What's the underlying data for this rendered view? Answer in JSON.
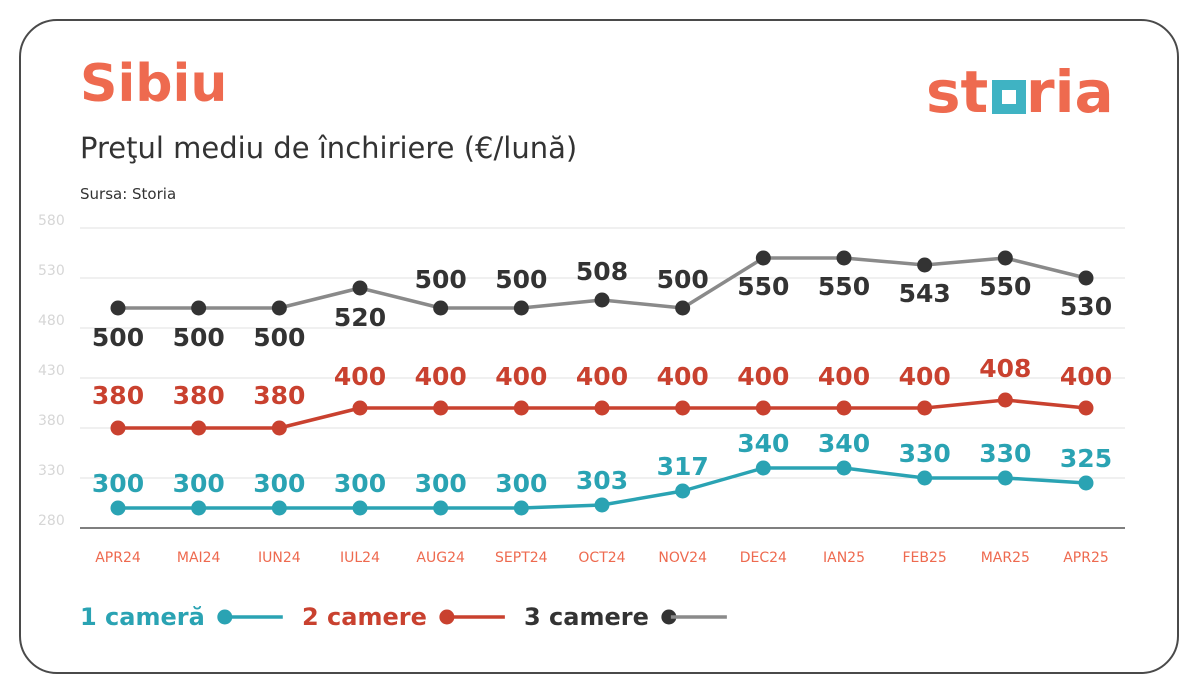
{
  "header": {
    "city": "Sibiu",
    "subtitle": "Preţul mediu de închiriere (€/lună)",
    "source": "Sursa: Storia",
    "logo_text": "storia"
  },
  "colors": {
    "brand": "#ee6a4f",
    "logo_square": "#3fb3c3",
    "one_room": "#2aa3b3",
    "two_rooms": "#c9412f",
    "three_rooms_label": "#333333",
    "three_rooms_line": "#8a8a8a",
    "three_rooms_marker": "#333333"
  },
  "chart_data": {
    "type": "line",
    "categories": [
      "APR24",
      "MAI24",
      "IUN24",
      "IUL24",
      "AUG24",
      "SEPT24",
      "OCT24",
      "NOV24",
      "DEC24",
      "IAN25",
      "FEB25",
      "MAR25",
      "APR25"
    ],
    "yticks": [
      280,
      330,
      380,
      430,
      480,
      530,
      580
    ],
    "ylim": [
      280,
      580
    ],
    "grid": true,
    "legend_position": "bottom-left",
    "series": [
      {
        "name": "1 cameră",
        "values": [
          300,
          300,
          300,
          300,
          300,
          300,
          303,
          317,
          340,
          340,
          330,
          330,
          325
        ]
      },
      {
        "name": "2 camere",
        "values": [
          380,
          380,
          380,
          400,
          400,
          400,
          400,
          400,
          400,
          400,
          400,
          408,
          400
        ]
      },
      {
        "name": "3 camere",
        "values": [
          500,
          500,
          500,
          520,
          500,
          500,
          508,
          500,
          550,
          550,
          543,
          550,
          530
        ]
      }
    ]
  }
}
